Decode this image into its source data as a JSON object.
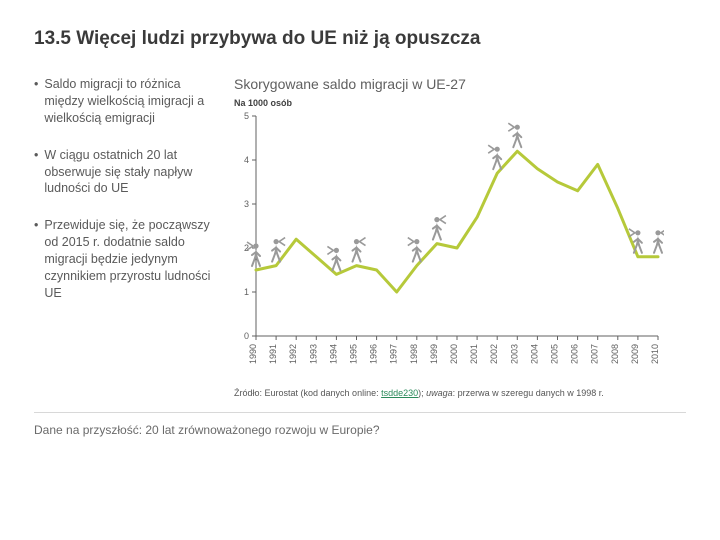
{
  "title_prefix": "13.5 ",
  "title_bold": "Więcej ludzi przybywa do UE niż ją opuszcza",
  "bullets": [
    "Saldo migracji to różnica między wielkością imigracji a wielkością emigracji",
    "W ciągu ostatnich 20 lat obserwuje się stały napływ ludności do UE",
    "Przewiduje się, że począwszy od 2015 r. dodatnie saldo migracji będzie jedynym czynnikiem przyrostu ludności UE"
  ],
  "chart": {
    "type": "line",
    "title": "Skorygowane saldo migracji w UE-27",
    "subtitle": "Na 1000 osób",
    "years": [
      "1990",
      "1991",
      "1992",
      "1993",
      "1994",
      "1995",
      "1996",
      "1997",
      "1998",
      "1999",
      "2000",
      "2001",
      "2002",
      "2003",
      "2004",
      "2005",
      "2006",
      "2007",
      "2008",
      "2009",
      "2010"
    ],
    "values": [
      1.5,
      1.6,
      2.2,
      1.8,
      1.4,
      1.6,
      1.5,
      1.0,
      1.6,
      2.1,
      2.0,
      2.7,
      3.7,
      4.2,
      3.8,
      3.5,
      3.3,
      3.9,
      2.9,
      1.8,
      1.8
    ],
    "ylim": [
      0,
      5
    ],
    "ytick_step": 1,
    "line_color": "#b6c93a",
    "line_width": 3,
    "axis_color": "#606060",
    "tick_font_size": 9,
    "background_color": "#ffffff",
    "grid": false,
    "figure_color": "#9a9a9a"
  },
  "source_prefix": "Źródło: Eurostat (kod danych online: ",
  "source_link": "tsdde230",
  "source_mid": "); ",
  "source_italic_label": "uwaga",
  "source_rest": ": przerwa w szeregu danych w 1998 r.",
  "footer": "Dane na przyszłość: 20 lat zrównoważonego rozwoju w Europie?"
}
